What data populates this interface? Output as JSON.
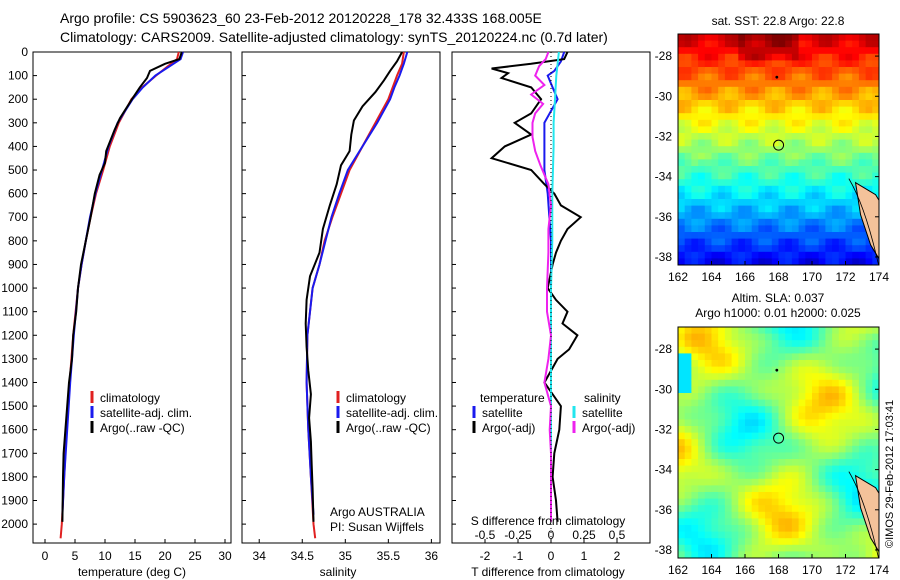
{
  "header": {
    "line1": "Argo profile: CS 5903623_60 23-Feb-2012 20120228_178 32.433S 168.005E",
    "line2": "Climatology: CARS2009. Satellite-adjusted climatology: synTS_20120224.nc (0.7d later)"
  },
  "colors": {
    "clim": "#e02020",
    "sat": "#1a1aee",
    "argo": "#000000",
    "sat_s": "#22e6ee",
    "argo_s": "#ee22ee"
  },
  "chart_data": [
    {
      "type": "line",
      "panel": "temperature",
      "xlabel": "temperature (deg C)",
      "xlim": [
        -2,
        31
      ],
      "xticks": [
        0,
        5,
        10,
        15,
        20,
        25,
        30
      ],
      "ylim": [
        2080,
        0
      ],
      "yticks": [
        0,
        100,
        200,
        300,
        400,
        500,
        600,
        700,
        800,
        900,
        1000,
        1100,
        1200,
        1300,
        1400,
        1500,
        1600,
        1700,
        1800,
        1900,
        2000
      ],
      "legend": [
        "climatology",
        "satellite-adj. clim.",
        "Argo(..raw -QC)"
      ],
      "series": [
        {
          "name": "climatology",
          "depth": [
            0,
            30,
            60,
            100,
            150,
            200,
            300,
            400,
            500,
            600,
            700,
            800,
            900,
            1000,
            1200,
            1400,
            1600,
            1800,
            2000,
            2060
          ],
          "values": [
            22.3,
            22,
            20.5,
            18.5,
            16.2,
            14.4,
            12.3,
            10.8,
            9.7,
            8.5,
            7.6,
            6.8,
            6.1,
            5.5,
            4.7,
            4.1,
            3.6,
            3.2,
            2.8,
            2.6
          ]
        },
        {
          "name": "satellite-adj. clim.",
          "depth": [
            0,
            30,
            60,
            100,
            150,
            200,
            300,
            400,
            500,
            600,
            700,
            800,
            900,
            1000,
            1200,
            1400,
            1600,
            1800,
            1960
          ],
          "values": [
            23,
            22.6,
            20.8,
            18.4,
            16.3,
            14.6,
            12.1,
            10.6,
            9.5,
            8.4,
            7.5,
            6.8,
            6.1,
            5.5,
            4.8,
            4.2,
            3.7,
            3.2,
            2.9
          ]
        },
        {
          "name": "Argo(..raw -QC)",
          "depth": [
            0,
            30,
            50,
            80,
            110,
            150,
            200,
            280,
            330,
            420,
            470,
            520,
            600,
            700,
            800,
            900,
            1000,
            1100,
            1200,
            1300,
            1400,
            1500,
            1600,
            1700,
            1800,
            1990
          ],
          "values": [
            22.8,
            22.4,
            20,
            17.5,
            17,
            15.8,
            14.5,
            12.5,
            11.6,
            10.2,
            10,
            9.1,
            8.3,
            7.6,
            6.8,
            6,
            5.5,
            5.2,
            4.7,
            4.5,
            4,
            3.7,
            3.4,
            3.1,
            3,
            2.9
          ]
        }
      ]
    },
    {
      "type": "line",
      "panel": "salinity",
      "xlabel": "salinity",
      "xlim": [
        33.8,
        36.1
      ],
      "xticks": [
        34,
        34.5,
        35,
        35.5,
        36
      ],
      "ylim": [
        2080,
        0
      ],
      "legend": [
        "climatology",
        "satellite-adj. clim.",
        "Argo(..raw -QC)"
      ],
      "annotation": [
        "Argo AUSTRALIA",
        "PI: Susan Wijffels"
      ],
      "series": [
        {
          "name": "climatology",
          "depth": [
            0,
            50,
            100,
            150,
            200,
            300,
            400,
            500,
            600,
            700,
            800,
            900,
            1000,
            1200,
            1400,
            1600,
            1800,
            2000,
            2060
          ],
          "values": [
            35.68,
            35.66,
            35.6,
            35.55,
            35.5,
            35.35,
            35.2,
            35.05,
            34.95,
            34.85,
            34.76,
            34.7,
            34.62,
            34.56,
            34.55,
            34.57,
            34.6,
            34.63,
            34.65
          ]
        },
        {
          "name": "satellite-adj. clim.",
          "depth": [
            0,
            50,
            100,
            150,
            200,
            300,
            400,
            500,
            600,
            700,
            800,
            900,
            1000,
            1200,
            1400,
            1600,
            1800,
            1960
          ],
          "values": [
            35.72,
            35.68,
            35.63,
            35.57,
            35.52,
            35.37,
            35.2,
            35.03,
            34.93,
            34.84,
            34.77,
            34.7,
            34.62,
            34.56,
            34.55,
            34.57,
            34.6,
            34.63
          ]
        },
        {
          "name": "Argo(..raw -QC)",
          "depth": [
            0,
            40,
            80,
            120,
            170,
            230,
            290,
            350,
            420,
            480,
            560,
            650,
            750,
            850,
            950,
            1050,
            1150,
            1250,
            1350,
            1450,
            1550,
            1650,
            1750,
            1850,
            1990
          ],
          "values": [
            35.66,
            35.6,
            35.52,
            35.45,
            35.35,
            35.2,
            35.1,
            35.07,
            35.05,
            34.95,
            34.9,
            34.82,
            34.74,
            34.7,
            34.59,
            34.55,
            34.54,
            34.55,
            34.57,
            34.6,
            34.58,
            34.6,
            34.61,
            34.62,
            34.63
          ]
        }
      ]
    },
    {
      "type": "line",
      "panel": "difference",
      "xlabel_top": "S difference from climatology",
      "xlabel": "T difference from climatology",
      "xticks": [
        -2,
        -1,
        0,
        1,
        2
      ],
      "xticks_top": [
        "-0.5",
        "-0.25",
        "0",
        "0.25",
        "0.5"
      ],
      "ylim": [
        2080,
        0
      ],
      "legend_titles": [
        "temperature",
        "salinity"
      ],
      "legend": [
        "satellite",
        "Argo(-adj)",
        "satellite",
        "Argo(-adj)"
      ],
      "series": [
        {
          "name": "satellite",
          "variable": "temperature",
          "depth": [
            0,
            40,
            80,
            100,
            150,
            200,
            300,
            400,
            500,
            600,
            800,
            1000,
            1200,
            1400,
            1600,
            1800,
            1960
          ],
          "values": [
            0.4,
            0.3,
            0.1,
            -0.1,
            0.05,
            0.2,
            -0.2,
            -0.2,
            -0.2,
            -0.1,
            0,
            0,
            0,
            0,
            0,
            0,
            0
          ]
        },
        {
          "name": "Argo(-adj)",
          "variable": "temperature",
          "depth": [
            0,
            30,
            50,
            70,
            90,
            110,
            150,
            200,
            260,
            300,
            350,
            400,
            450,
            500,
            560,
            600,
            650,
            700,
            750,
            800,
            850,
            900,
            1000,
            1050,
            1100,
            1150,
            1200,
            1260,
            1300,
            1350,
            1400,
            1500,
            1600,
            1700,
            1800,
            1900,
            1990
          ],
          "values": [
            0.5,
            0.4,
            -0.6,
            -1.8,
            -1.3,
            -1.5,
            -0.6,
            -0.3,
            -0.6,
            -1.1,
            -0.6,
            -1.4,
            -1.8,
            -0.6,
            -0.2,
            0.1,
            0.3,
            0.9,
            0.5,
            0.3,
            0.15,
            0.05,
            -0.1,
            0.15,
            0.5,
            0.35,
            0.8,
            0.55,
            0.2,
            0,
            -0.2,
            0.3,
            0.25,
            0.1,
            0.05,
            0.15,
            0.2
          ]
        },
        {
          "name": "satellite",
          "variable": "salinity",
          "depth": [
            0,
            50,
            100,
            200,
            300,
            400,
            600,
            800,
            1000,
            1200,
            1400,
            1600,
            1800,
            1960
          ],
          "values": [
            0.06,
            0.05,
            0.04,
            0.03,
            0.02,
            0.02,
            0.01,
            0.01,
            0,
            0,
            0,
            0,
            0,
            0
          ]
        },
        {
          "name": "Argo(-adj)",
          "variable": "salinity",
          "depth": [
            0,
            30,
            60,
            100,
            140,
            180,
            220,
            260,
            300,
            360,
            420,
            480,
            560,
            650,
            750,
            850,
            1000,
            1100,
            1200,
            1300,
            1400,
            1500,
            1600,
            1700,
            1800,
            1990
          ],
          "values": [
            -0.02,
            -0.04,
            -0.09,
            -0.12,
            -0.05,
            -0.15,
            -0.06,
            -0.12,
            -0.14,
            -0.14,
            -0.12,
            -0.08,
            -0.02,
            0,
            -0.02,
            -0.02,
            -0.03,
            -0.03,
            0,
            -0.02,
            -0.05,
            0,
            -0.01,
            0,
            0,
            0
          ]
        }
      ]
    },
    {
      "type": "heatmap",
      "panel": "sst_map",
      "title": "sat. SST: 22.8  Argo: 22.8",
      "xticks": [
        162,
        164,
        166,
        168,
        170,
        172,
        174
      ],
      "yticks": [
        -28,
        -30,
        -32,
        -34,
        -36,
        -38
      ],
      "xlim": [
        162,
        174
      ],
      "ylim": [
        -38.4,
        -26.9
      ],
      "argo_position": [
        168.005,
        -32.433
      ]
    },
    {
      "type": "heatmap",
      "panel": "sla_map",
      "title_line1": "Altim. SLA: 0.037",
      "title_line2": "Argo h1000: 0.01 h2000: 0.025",
      "xticks": [
        162,
        164,
        166,
        168,
        170,
        172,
        174
      ],
      "yticks": [
        -28,
        -30,
        -32,
        -34,
        -36,
        -38
      ],
      "xlim": [
        162,
        174
      ],
      "ylim": [
        -38.4,
        -26.9
      ],
      "argo_position": [
        168.005,
        -32.433
      ]
    }
  ],
  "side_label": "©IMOS 29-Feb-2012 17:03:41"
}
